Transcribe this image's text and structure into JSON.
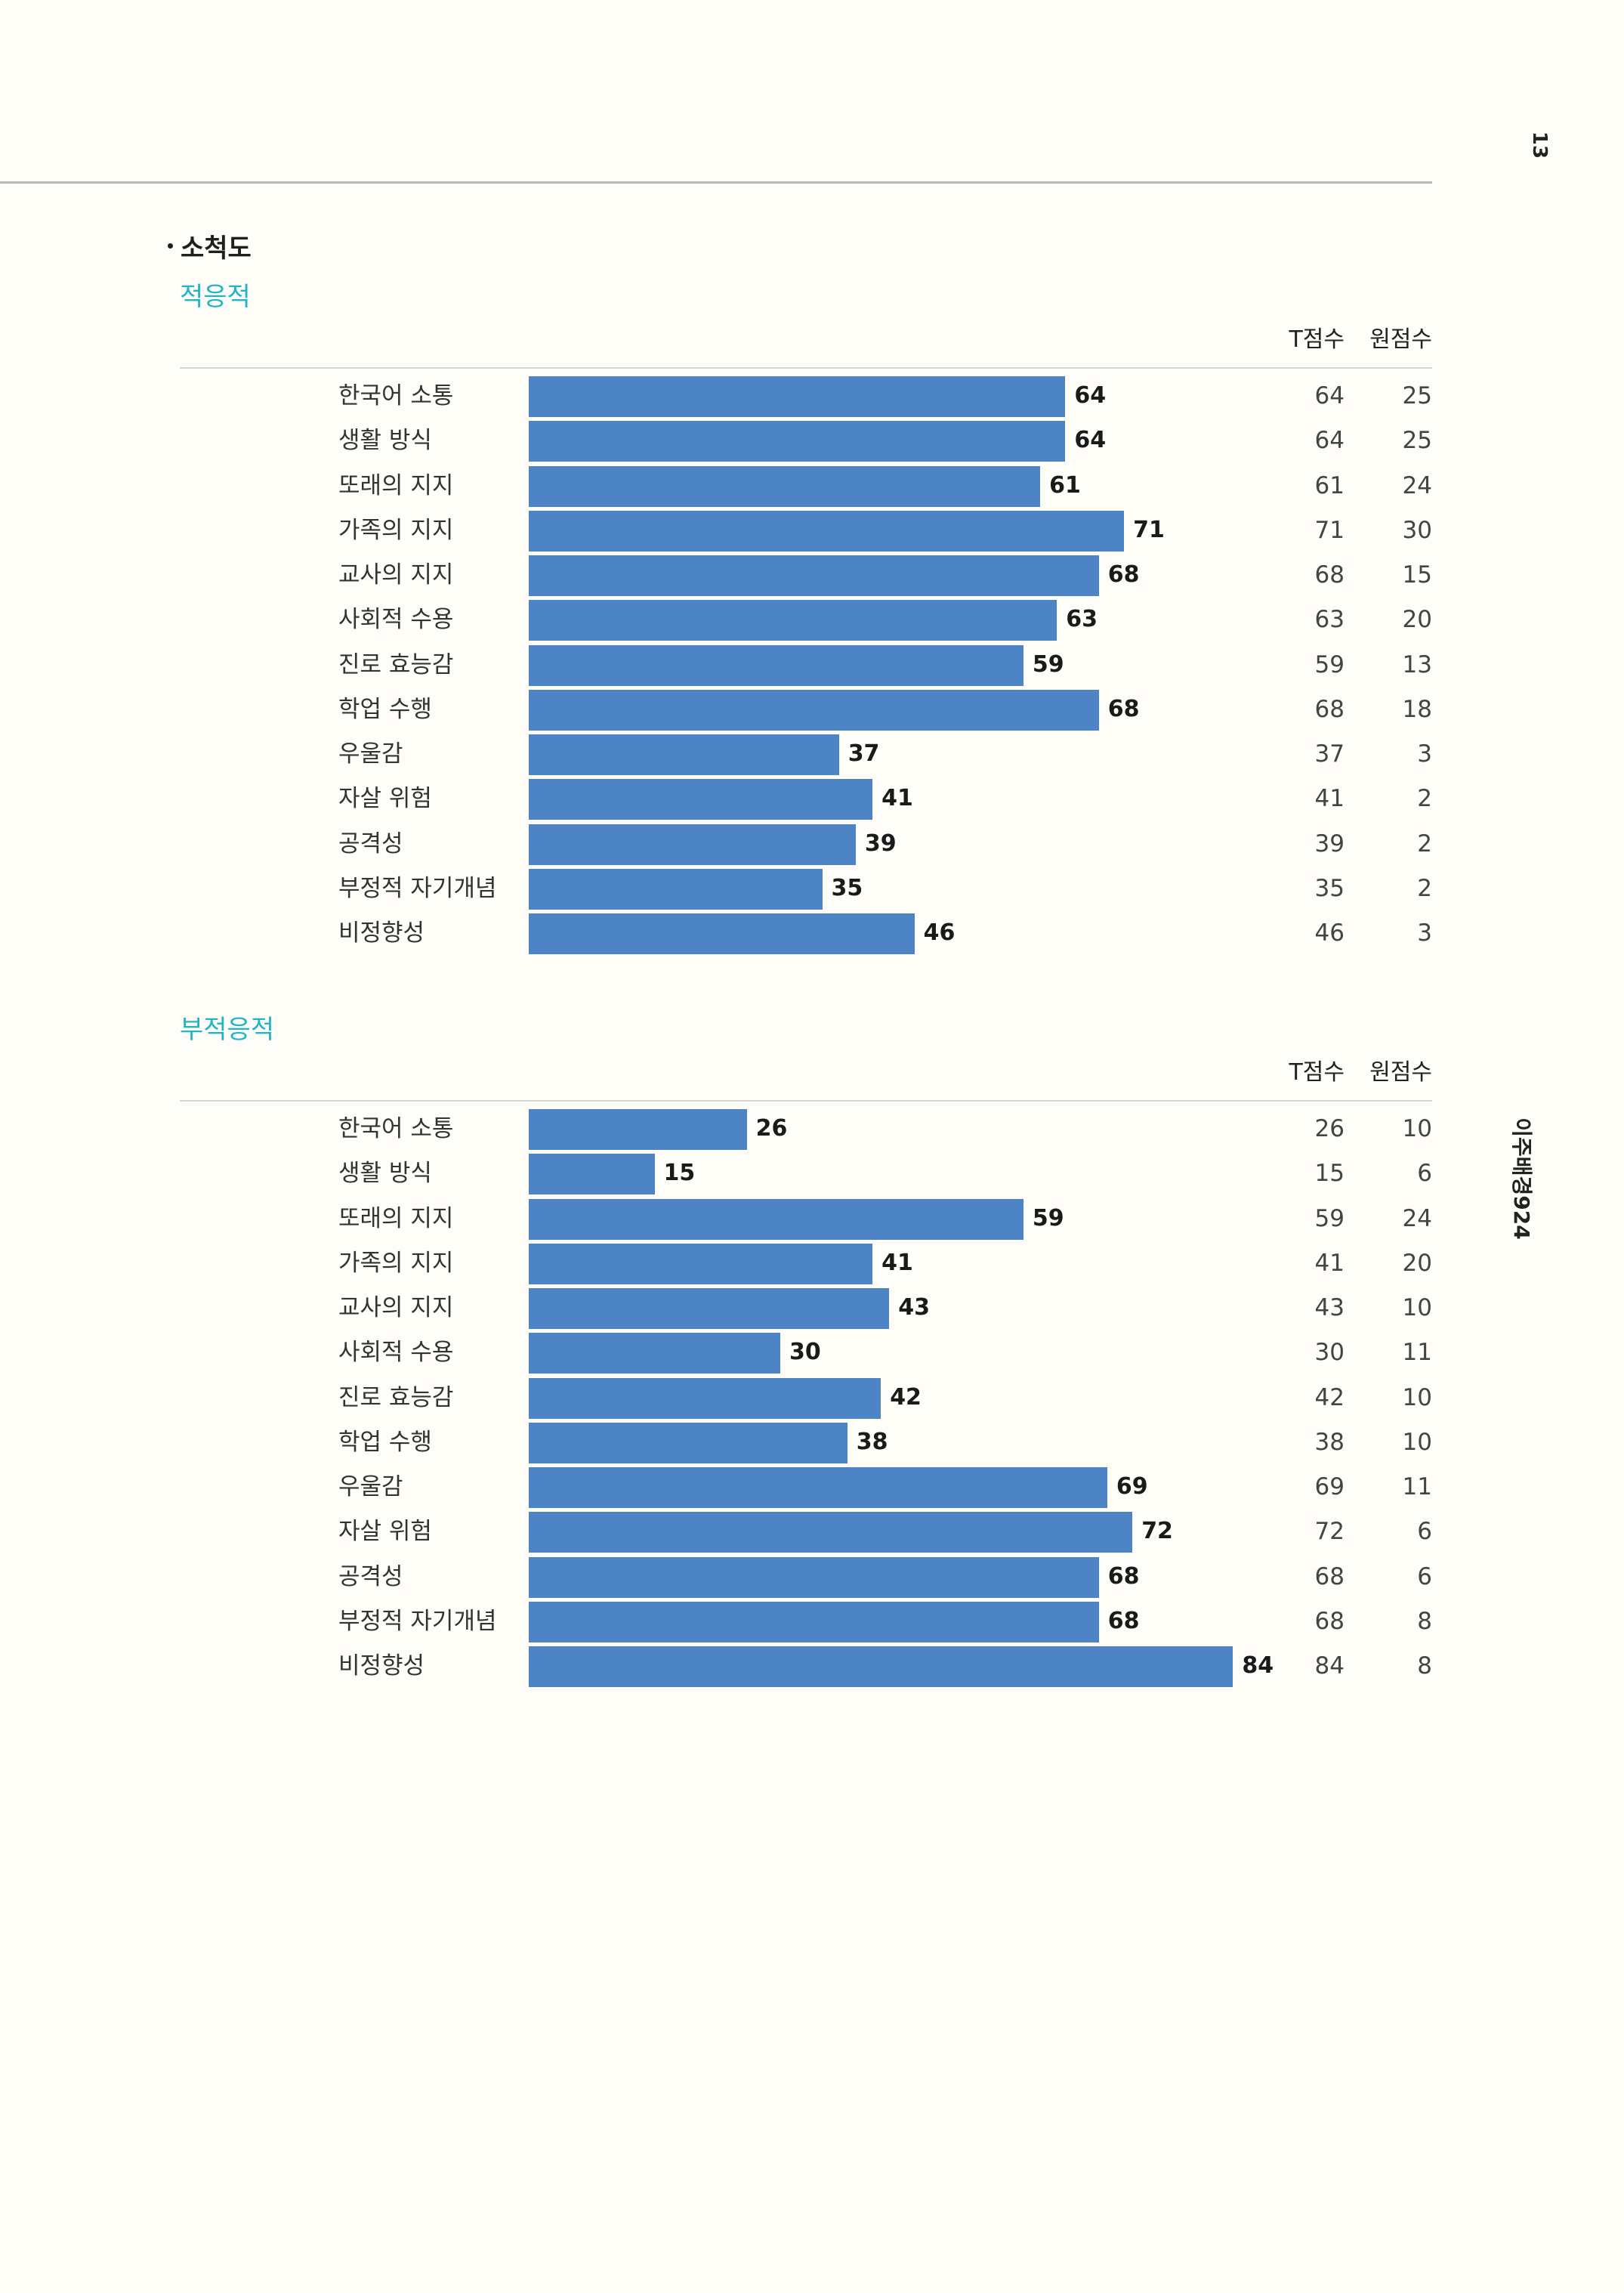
{
  "page_number": "13",
  "side_title": "이주배경924",
  "section_heading": "소척도",
  "column_headers": {
    "t_score": "T점수",
    "raw_score": "원점수"
  },
  "chart_data": [
    {
      "type": "bar",
      "orientation": "horizontal",
      "title": "적응적",
      "x_max": 100,
      "categories": [
        "한국어 소통",
        "생활 방식",
        "또래의 지지",
        "가족의 지지",
        "교사의 지지",
        "사회적 수용",
        "진로 효능감",
        "학업 수행",
        "우울감",
        "자살 위험",
        "공격성",
        "부정적 자기개념",
        "비정향성"
      ],
      "values": [
        64,
        64,
        61,
        71,
        68,
        63,
        59,
        68,
        37,
        41,
        39,
        35,
        46
      ],
      "raw_scores": [
        25,
        25,
        24,
        30,
        15,
        20,
        13,
        18,
        3,
        2,
        2,
        2,
        3
      ],
      "bar_color": "#4c84c5"
    },
    {
      "type": "bar",
      "orientation": "horizontal",
      "title": "부적응적",
      "x_max": 100,
      "categories": [
        "한국어 소통",
        "생활 방식",
        "또래의 지지",
        "가족의 지지",
        "교사의 지지",
        "사회적 수용",
        "진로 효능감",
        "학업 수행",
        "우울감",
        "자살 위험",
        "공격성",
        "부정적 자기개념",
        "비정향성"
      ],
      "values": [
        26,
        15,
        59,
        41,
        43,
        30,
        42,
        38,
        69,
        72,
        68,
        68,
        84
      ],
      "raw_scores": [
        10,
        6,
        24,
        20,
        10,
        11,
        10,
        10,
        11,
        6,
        6,
        8,
        8
      ],
      "bar_color": "#4c84c5"
    }
  ]
}
